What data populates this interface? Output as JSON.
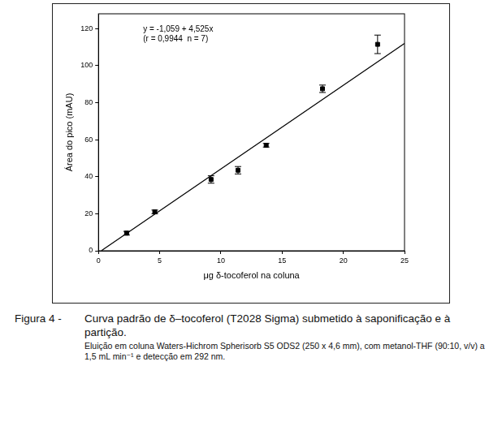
{
  "chart_data": {
    "type": "scatter",
    "x_label": "μg δ-tocoferol na coluna",
    "y_label": "Área do pico (mAU)",
    "annotations": [
      "y = -1,059 + 4,525x",
      "(r = 0,9944  n = 7)"
    ],
    "series": [
      {
        "type": "scatter",
        "marker": "square",
        "color": "#000000",
        "x": [
          2.3,
          4.6,
          9.2,
          11.4,
          13.7,
          18.3,
          22.8
        ],
        "values": [
          9.5,
          21,
          38.5,
          43.5,
          57,
          87.5,
          111.5
        ],
        "errors": [
          1,
          1,
          2,
          2,
          1,
          2,
          5
        ]
      },
      {
        "type": "line",
        "line_style": "solid",
        "color": "#000000",
        "x": [
          0.25,
          25
        ],
        "values": [
          0.1,
          112
        ]
      }
    ],
    "xlim": [
      0,
      25
    ],
    "xticks": [
      0,
      5,
      10,
      15,
      20,
      25
    ],
    "ylim": [
      0,
      128
    ],
    "yticks": [
      0,
      20,
      40,
      60,
      80,
      100,
      120
    ],
    "grid": false
  },
  "figure": {
    "label": "Figura 4 -",
    "caption": "Curva padrão de δ–tocoferol (T2028 Sigma) submetido à saponificação e à partição.",
    "note": "Eluição em coluna Waters-Hichrom Spherisorb S5 ODS2 (250 x 4,6 mm), com metanol-THF (90:10, v/v) a 1,5 mL min⁻¹ e detecção em 292 nm."
  }
}
